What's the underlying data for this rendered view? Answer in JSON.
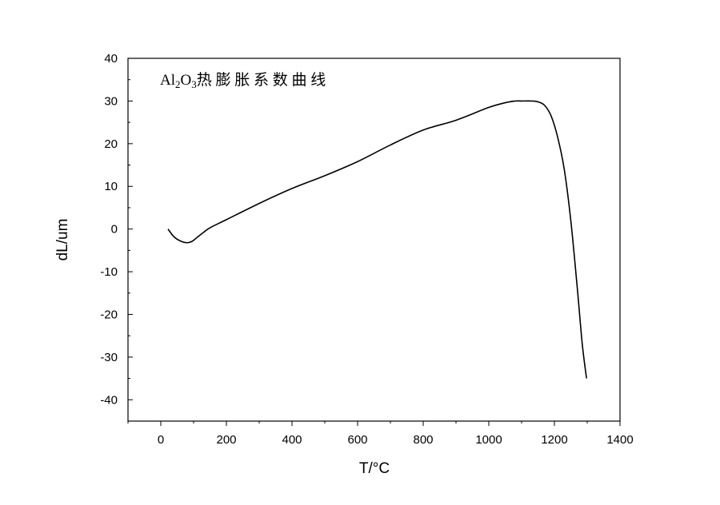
{
  "chart_data": {
    "type": "line",
    "title": "",
    "annotation": {
      "prefix": "Al",
      "sub1": "2",
      "mid": "O",
      "sub2": "3",
      "suffix": "热 膨 胀 系 数 曲 线"
    },
    "xlabel": "T/°C",
    "ylabel": "dL/um",
    "xlim": [
      -100,
      1400
    ],
    "ylim": [
      -45,
      40
    ],
    "x_ticks": [
      0,
      200,
      400,
      600,
      800,
      1000,
      1200,
      1400
    ],
    "y_ticks": [
      -40,
      -30,
      -20,
      -10,
      0,
      10,
      20,
      30,
      40
    ],
    "grid": false,
    "series": [
      {
        "color": "#000000",
        "x": [
          22,
          40,
          60,
          80,
          95,
          110,
          130,
          150,
          200,
          300,
          400,
          500,
          600,
          700,
          800,
          900,
          1000,
          1050,
          1080,
          1100,
          1130,
          1150,
          1170,
          1190,
          1210,
          1230,
          1250,
          1270,
          1285,
          1298
        ],
        "y": [
          0,
          -1.8,
          -2.8,
          -3.2,
          -2.9,
          -2,
          -0.8,
          0.3,
          2.2,
          6,
          9.5,
          12.5,
          15.8,
          19.7,
          23.2,
          25.5,
          28.5,
          29.6,
          30,
          30,
          30,
          29.8,
          29,
          26.5,
          21.5,
          14,
          2,
          -14,
          -27,
          -35
        ]
      }
    ]
  }
}
